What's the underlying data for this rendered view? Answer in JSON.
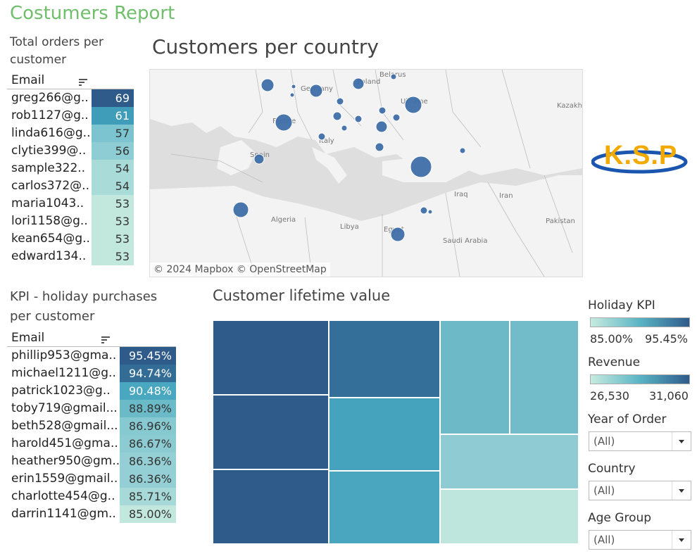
{
  "title": "Costumers Report",
  "orders": {
    "title_line1": "Total orders per",
    "title_line2": "customer",
    "column_header": "Email",
    "rows": [
      {
        "email": "greg266@g..",
        "value": "69",
        "color": "#2e5b8a",
        "text_color": "#ffffff"
      },
      {
        "email": "rob1127@g..",
        "value": "61",
        "color": "#3f9dba",
        "text_color": "#ffffff"
      },
      {
        "email": "linda616@g..",
        "value": "57",
        "color": "#7cc4cf",
        "text_color": "#333333"
      },
      {
        "email": "clytie399@..",
        "value": "56",
        "color": "#8ecdd3",
        "text_color": "#333333"
      },
      {
        "email": "sample322..",
        "value": "54",
        "color": "#a9dcd8",
        "text_color": "#333333"
      },
      {
        "email": "carlos372@..",
        "value": "54",
        "color": "#a9dcd8",
        "text_color": "#333333"
      },
      {
        "email": "maria1043..",
        "value": "53",
        "color": "#c2e8de",
        "text_color": "#333333"
      },
      {
        "email": "lori1158@g..",
        "value": "53",
        "color": "#c2e8de",
        "text_color": "#333333"
      },
      {
        "email": "kean654@g..",
        "value": "53",
        "color": "#c2e8de",
        "text_color": "#333333"
      },
      {
        "email": "edward134..",
        "value": "53",
        "color": "#c2e8de",
        "text_color": "#333333"
      }
    ]
  },
  "kpi": {
    "title_line1": "KPI - holiday purchases",
    "title_line2": "per customer",
    "column_header": "Email",
    "rows": [
      {
        "email": "phillip953@gma..",
        "value": "95.45%",
        "color": "#2e5b8a",
        "text_color": "#ffffff"
      },
      {
        "email": "michael1211@g..",
        "value": "94.74%",
        "color": "#336c95",
        "text_color": "#ffffff"
      },
      {
        "email": "patrick1023@g..",
        "value": "90.48%",
        "color": "#49a7bf",
        "text_color": "#ffffff"
      },
      {
        "email": "toby719@gmail...",
        "value": "88.89%",
        "color": "#6bbac8",
        "text_color": "#333333"
      },
      {
        "email": "beth528@gmail...",
        "value": "86.96%",
        "color": "#86c9d1",
        "text_color": "#333333"
      },
      {
        "email": "harold451@gma..",
        "value": "86.67%",
        "color": "#8ccbd2",
        "text_color": "#333333"
      },
      {
        "email": "heather950@gm..",
        "value": "86.36%",
        "color": "#93cfd4",
        "text_color": "#333333"
      },
      {
        "email": "erin1559@gmail..",
        "value": "86.36%",
        "color": "#93cfd4",
        "text_color": "#333333"
      },
      {
        "email": "charlotte454@g..",
        "value": "85.71%",
        "color": "#a6d9d7",
        "text_color": "#333333"
      },
      {
        "email": "darrin1141@gm..",
        "value": "85.00%",
        "color": "#c2e8de",
        "text_color": "#333333"
      }
    ]
  },
  "map": {
    "title": "Customers per country",
    "attribution": "© 2024 Mapbox © OpenStreetMap",
    "labels": [
      "Belarus",
      "Germany",
      "Poland",
      "Ukraine",
      "Kazakhs",
      "France",
      "Italy",
      "Spain",
      "Iraq",
      "Iran",
      "Algeria",
      "Libya",
      "Egypt",
      "Saudi Arabia",
      "Pakistan"
    ],
    "bubble_color": "#3e6fa8"
  },
  "logo": {
    "text": "K.S.P"
  },
  "treemap": {
    "title": "Customer lifetime value",
    "cells": [
      {
        "color": "#2e5b8a"
      },
      {
        "color": "#2e5b8a"
      },
      {
        "color": "#2e5b8a"
      },
      {
        "color": "#336f98"
      },
      {
        "color": "#45a3bd"
      },
      {
        "color": "#4aa6bf"
      },
      {
        "color": "#6eb9c7"
      },
      {
        "color": "#72bcc9"
      },
      {
        "color": "#8ecbd2"
      },
      {
        "color": "#bfe6dc"
      }
    ]
  },
  "legends": {
    "holiday_kpi": {
      "title": "Holiday KPI",
      "min": "85.00%",
      "max": "95.45%"
    },
    "revenue": {
      "title": "Revenue",
      "min": "26,530",
      "max": "31,060"
    }
  },
  "filters": [
    {
      "label": "Year of Order",
      "value": "(All)"
    },
    {
      "label": "Country",
      "value": "(All)"
    },
    {
      "label": "Age Group",
      "value": "(All)"
    }
  ]
}
